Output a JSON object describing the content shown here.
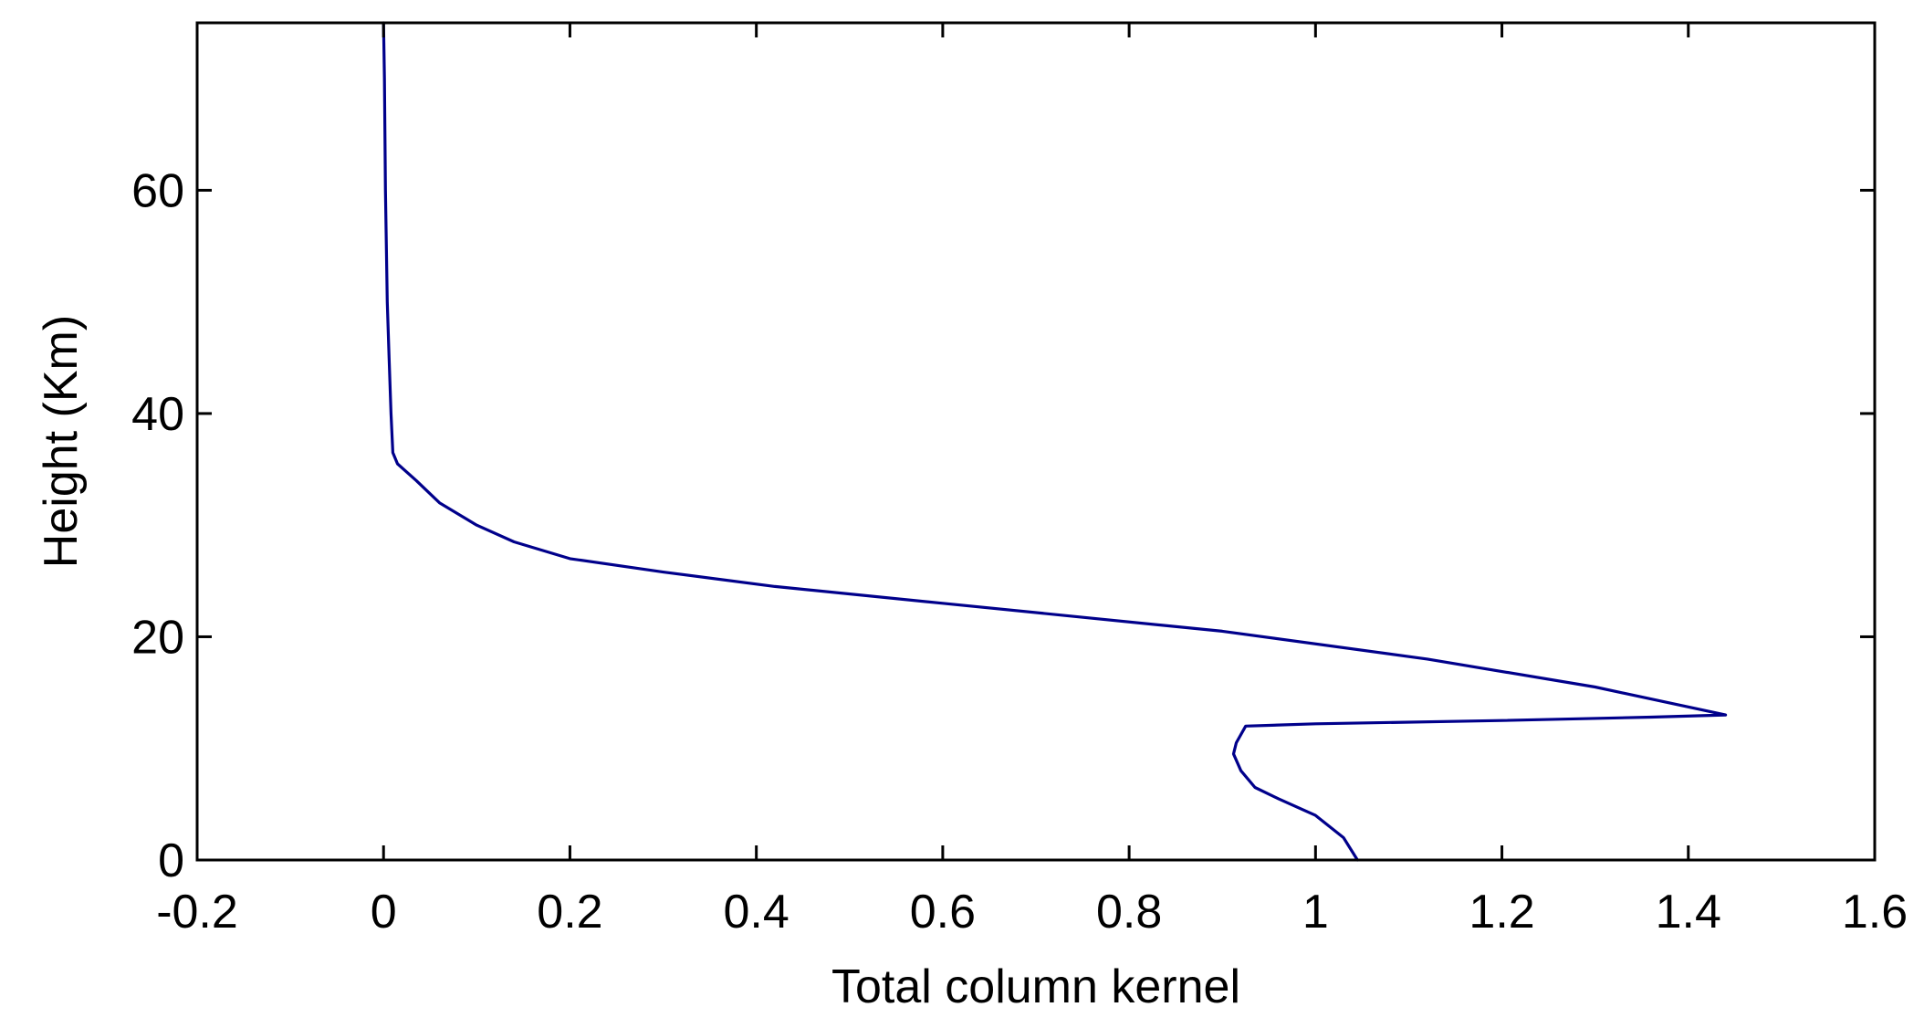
{
  "chart_data": {
    "type": "line",
    "title": "",
    "xlabel": "Total column kernel",
    "ylabel": "Height (Km)",
    "xlim": [
      -0.2,
      1.6
    ],
    "ylim": [
      0,
      75
    ],
    "x_ticks": [
      -0.2,
      0,
      0.2,
      0.4,
      0.6,
      0.8,
      1,
      1.2,
      1.4,
      1.6
    ],
    "x_tick_labels": [
      "-0.2",
      "0",
      "0.2",
      "0.4",
      "0.6",
      "0.8",
      "1",
      "1.2",
      "1.4",
      "1.6"
    ],
    "y_ticks": [
      0,
      20,
      40,
      60
    ],
    "y_tick_labels": [
      "0",
      "20",
      "40",
      "60"
    ],
    "grid": false,
    "legend": "none",
    "colors": {
      "line": "#00008b",
      "axes": "#000000",
      "background": "#ffffff"
    },
    "series": [
      {
        "x": [
          1.045,
          1.03,
          1.0,
          0.96,
          0.935,
          0.92,
          0.912,
          0.915,
          0.925,
          1.0,
          1.2,
          1.36,
          1.44,
          1.3,
          1.12,
          0.9,
          0.6,
          0.42,
          0.3,
          0.2,
          0.14,
          0.1,
          0.06,
          0.035,
          0.015,
          0.01,
          0.008,
          0.006,
          0.004,
          0.002,
          0.001,
          0.0
        ],
        "y": [
          0,
          2,
          4,
          5.5,
          6.5,
          8,
          9.5,
          10.5,
          12,
          12.2,
          12.5,
          12.8,
          13,
          15.5,
          18,
          20.5,
          23,
          24.5,
          25.8,
          27,
          28.5,
          30,
          32,
          34,
          35.5,
          36.5,
          40,
          45,
          50,
          60,
          70,
          75
        ]
      }
    ]
  }
}
